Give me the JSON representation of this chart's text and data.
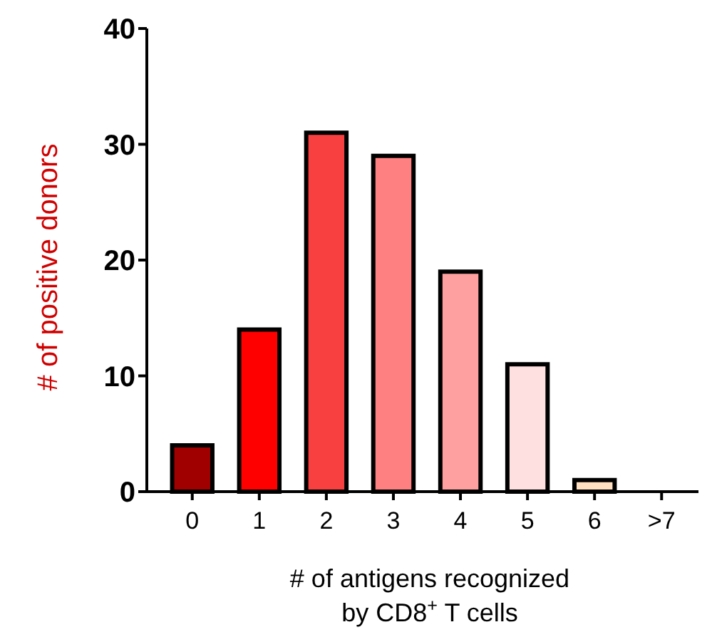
{
  "chart_data": {
    "type": "bar",
    "xlabel": "# of antigens recognized\nby CD8$^{+}$ T cells",
    "ylabel": "# of positive donors",
    "categories": [
      "0",
      "1",
      "2",
      "3",
      "4",
      "5",
      "6",
      ">7"
    ],
    "values": [
      4,
      14,
      31,
      29,
      19,
      11,
      1,
      0
    ],
    "colors": [
      "#a00000",
      "#ff0000",
      "#f84040",
      "#ff8080",
      "#ffa0a0",
      "#ffe0e0",
      "#ffe0c0",
      "#ffffff"
    ],
    "ylim": [
      0,
      40
    ],
    "yticks": [
      0,
      10,
      20,
      30,
      40
    ],
    "grid": false
  }
}
